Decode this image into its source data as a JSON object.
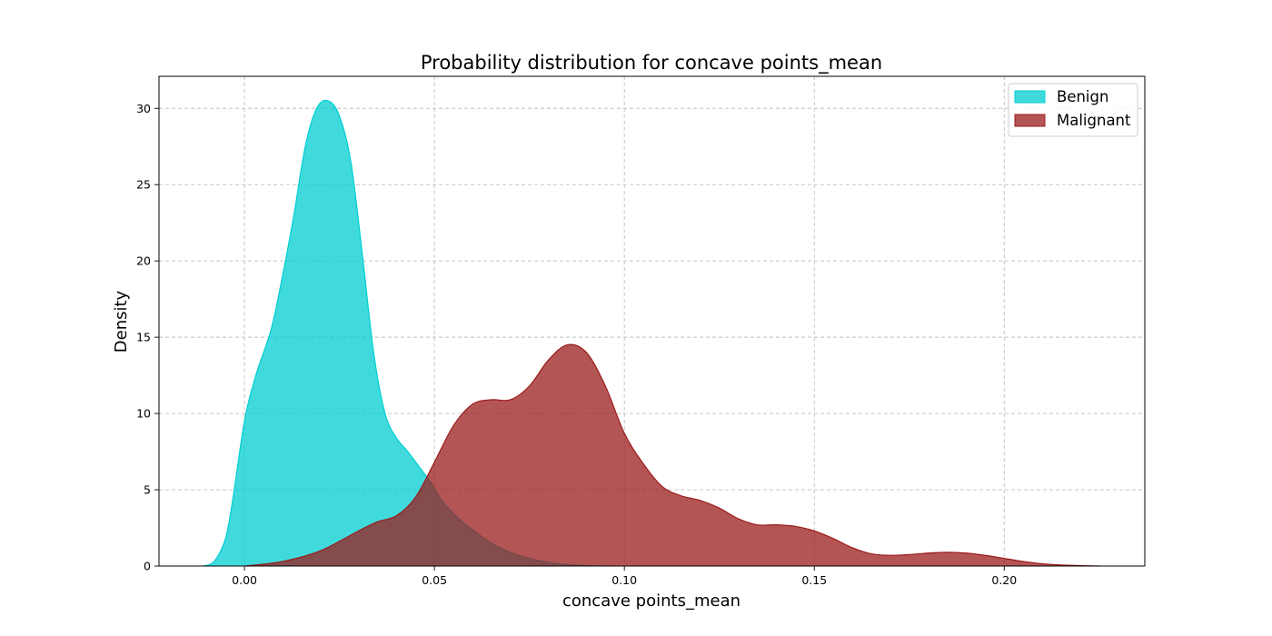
{
  "chart_data": {
    "type": "area",
    "title": "Probability distribution for concave points_mean",
    "xlabel": "concave points_mean",
    "ylabel": "Density",
    "xlim": [
      -0.0225,
      0.237
    ],
    "ylim": [
      0,
      32.1
    ],
    "xticks": [
      0.0,
      0.05,
      0.1,
      0.15,
      0.2
    ],
    "xtick_labels": [
      "0.00",
      "0.05",
      "0.10",
      "0.15",
      "0.20"
    ],
    "yticks": [
      0,
      5,
      10,
      15,
      20,
      25,
      30
    ],
    "ytick_labels": [
      "0",
      "5",
      "10",
      "15",
      "20",
      "25",
      "30"
    ],
    "grid": true,
    "legend_position": "top-right",
    "series": [
      {
        "name": "Benign",
        "color": "#00CED1",
        "x": [
          -0.011,
          -0.008,
          -0.005,
          -0.003,
          0.0,
          0.003,
          0.007,
          0.01,
          0.013,
          0.016,
          0.019,
          0.022,
          0.025,
          0.028,
          0.031,
          0.034,
          0.037,
          0.04,
          0.043,
          0.046,
          0.049,
          0.052,
          0.056,
          0.06,
          0.065,
          0.07,
          0.075,
          0.08,
          0.085,
          0.09,
          0.095
        ],
        "y": [
          0.0,
          0.3,
          1.8,
          4.5,
          9.5,
          12.5,
          15.5,
          19.0,
          23.0,
          27.5,
          30.0,
          30.5,
          29.5,
          26.5,
          20.5,
          14.0,
          10.0,
          8.4,
          7.5,
          6.5,
          5.5,
          4.3,
          3.2,
          2.4,
          1.5,
          0.9,
          0.5,
          0.25,
          0.1,
          0.03,
          0.0
        ]
      },
      {
        "name": "Malignant",
        "color": "#9B1C1C",
        "x": [
          0.0,
          0.01,
          0.02,
          0.03,
          0.035,
          0.04,
          0.045,
          0.05,
          0.055,
          0.06,
          0.065,
          0.07,
          0.075,
          0.08,
          0.085,
          0.09,
          0.095,
          0.1,
          0.105,
          0.11,
          0.115,
          0.12,
          0.125,
          0.13,
          0.135,
          0.14,
          0.145,
          0.15,
          0.155,
          0.16,
          0.165,
          0.17,
          0.175,
          0.18,
          0.185,
          0.19,
          0.195,
          0.2,
          0.205,
          0.21,
          0.215,
          0.22,
          0.225
        ],
        "y": [
          0.0,
          0.3,
          1.0,
          2.3,
          2.9,
          3.3,
          4.5,
          6.8,
          9.2,
          10.6,
          10.9,
          10.9,
          11.8,
          13.5,
          14.5,
          14.0,
          11.8,
          8.7,
          6.7,
          5.2,
          4.6,
          4.3,
          3.8,
          3.1,
          2.7,
          2.7,
          2.6,
          2.3,
          1.8,
          1.2,
          0.8,
          0.7,
          0.75,
          0.85,
          0.9,
          0.85,
          0.7,
          0.5,
          0.3,
          0.15,
          0.07,
          0.03,
          0.0
        ]
      }
    ]
  }
}
